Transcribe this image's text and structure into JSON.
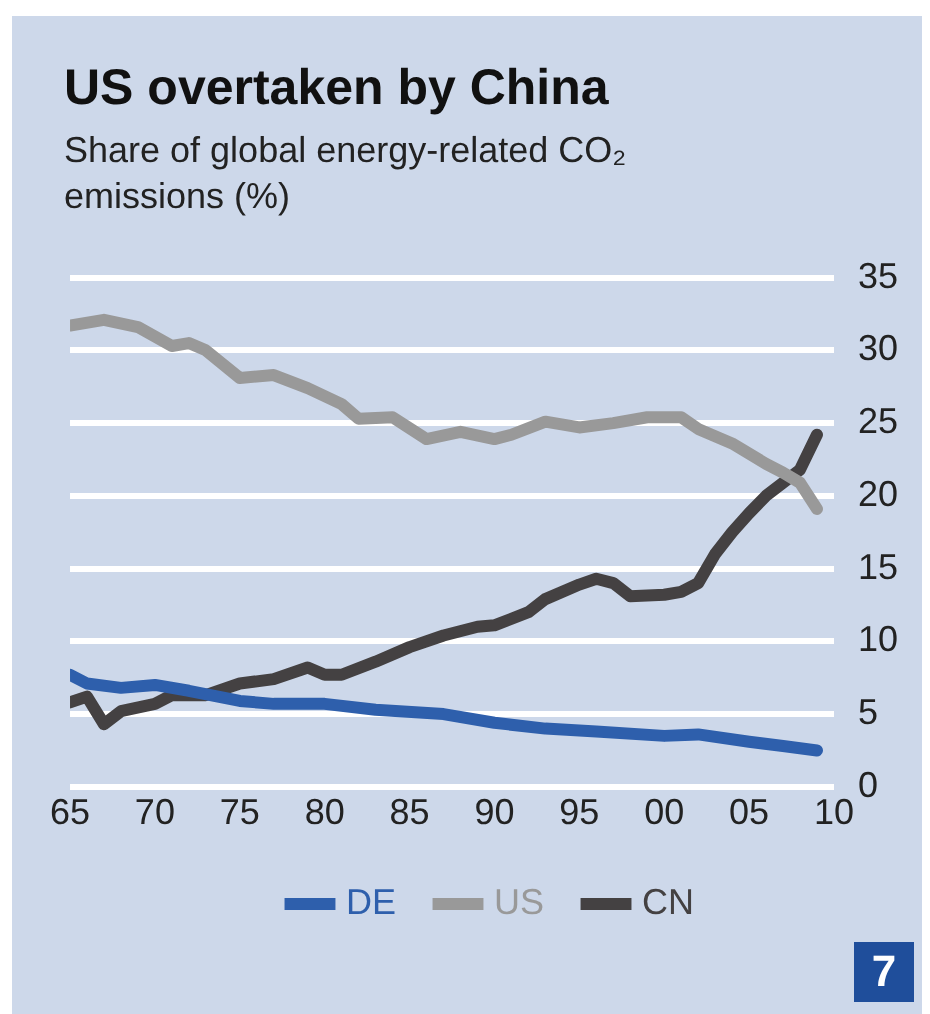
{
  "chart_data": {
    "type": "line",
    "title": "US overtaken by China",
    "subtitle": "Share of global energy-related CO₂ emissions (%)",
    "xlim": [
      1965,
      2010
    ],
    "xticks": [
      {
        "value": 1965,
        "label": "65"
      },
      {
        "value": 1970,
        "label": "70"
      },
      {
        "value": 1975,
        "label": "75"
      },
      {
        "value": 1980,
        "label": "80"
      },
      {
        "value": 1985,
        "label": "85"
      },
      {
        "value": 1990,
        "label": "90"
      },
      {
        "value": 1995,
        "label": "95"
      },
      {
        "value": 2000,
        "label": "00"
      },
      {
        "value": 2005,
        "label": "05"
      },
      {
        "value": 2010,
        "label": "10"
      }
    ],
    "ylim": [
      0,
      35
    ],
    "yticks": [
      0,
      5,
      10,
      15,
      20,
      25,
      30,
      35
    ],
    "grid": "y",
    "legend": "bottom",
    "marker": "none",
    "line_style": "solid",
    "annotations": [
      "7"
    ],
    "series": [
      {
        "name": "DE",
        "color": "#2e5fac",
        "x": [
          1965,
          1966,
          1968,
          1970,
          1972,
          1975,
          1977,
          1980,
          1983,
          1987,
          1990,
          1993,
          1996,
          2000,
          2002,
          2005,
          2007,
          2009
        ],
        "values": [
          7.7,
          7.1,
          6.8,
          7.0,
          6.6,
          5.9,
          5.7,
          5.7,
          5.3,
          5.0,
          4.4,
          4.0,
          3.8,
          3.5,
          3.6,
          3.1,
          2.8,
          2.5
        ]
      },
      {
        "name": "US",
        "color": "#999999",
        "x": [
          1965,
          1967,
          1969,
          1971,
          1972,
          1973,
          1975,
          1977,
          1979,
          1981,
          1982,
          1984,
          1986,
          1988,
          1990,
          1991,
          1993,
          1995,
          1997,
          1999,
          2001,
          2002,
          2004,
          2006,
          2007,
          2008,
          2009
        ],
        "values": [
          31.7,
          32.1,
          31.6,
          30.3,
          30.5,
          30.0,
          28.1,
          28.3,
          27.4,
          26.3,
          25.3,
          25.4,
          23.9,
          24.4,
          23.9,
          24.2,
          25.1,
          24.7,
          25.0,
          25.4,
          25.4,
          24.6,
          23.6,
          22.2,
          21.6,
          20.9,
          19.1
        ]
      },
      {
        "name": "CN",
        "color": "#444142",
        "x": [
          1965,
          1966,
          1967,
          1968,
          1970,
          1971,
          1973,
          1975,
          1977,
          1979,
          1980,
          1981,
          1983,
          1985,
          1987,
          1989,
          1990,
          1992,
          1993,
          1995,
          1996,
          1997,
          1998,
          2000,
          2001,
          2002,
          2003,
          2004,
          2005,
          2006,
          2007,
          2008,
          2009
        ],
        "values": [
          5.8,
          6.2,
          4.3,
          5.2,
          5.7,
          6.3,
          6.3,
          7.1,
          7.4,
          8.2,
          7.7,
          7.7,
          8.6,
          9.6,
          10.4,
          11.0,
          11.1,
          12.0,
          12.9,
          13.9,
          14.3,
          14.0,
          13.1,
          13.2,
          13.4,
          14.0,
          16.0,
          17.5,
          18.8,
          20.0,
          20.9,
          21.8,
          24.2
        ]
      }
    ]
  }
}
